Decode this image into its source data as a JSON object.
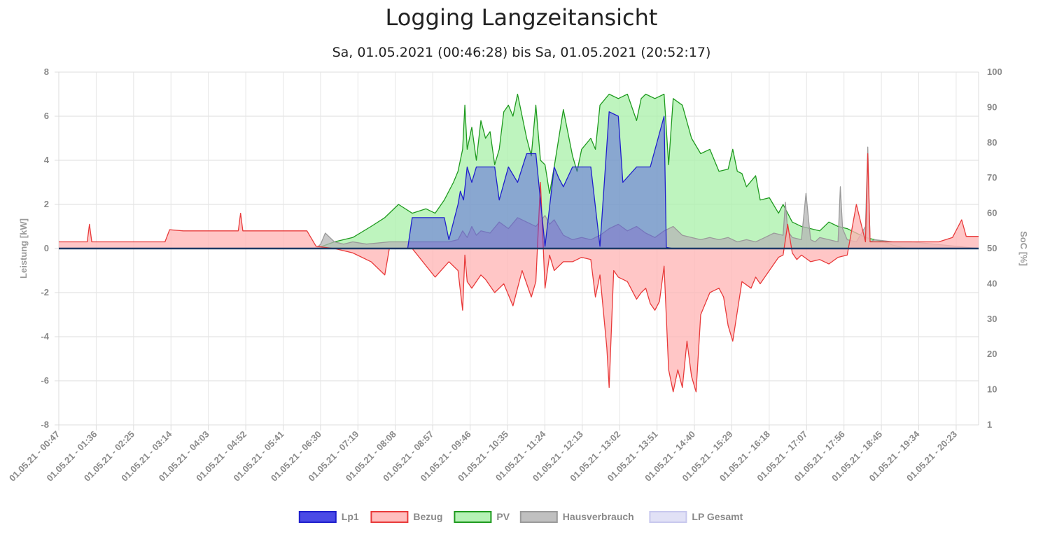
{
  "page": {
    "title": "Logging Langzeitansicht",
    "subtitle": "Sa, 01.05.2021 (00:46:28) bis Sa, 01.05.2021 (20:52:17)"
  },
  "chart_data": {
    "type": "area",
    "title": "Logging Langzeitansicht",
    "subtitle": "Sa, 01.05.2021 (00:46:28) bis Sa, 01.05.2021 (20:52:17)",
    "ylabel": "Leistung [kW]",
    "y2label": "SoC [%]",
    "ylim": [
      -8,
      8
    ],
    "y_ticks": [
      8,
      6,
      4,
      2,
      0,
      -2,
      -4,
      -6,
      -8
    ],
    "y2_ticks": [
      100,
      90,
      80,
      70,
      60,
      50,
      40,
      30,
      20,
      10,
      1
    ],
    "x_hours_range": [
      0.78,
      20.87
    ],
    "categories": [
      "01.05.21 - 00:47",
      "01.05.21 - 01:36",
      "01.05.21 - 02:25",
      "01.05.21 - 03:14",
      "01.05.21 - 04:03",
      "01.05.21 - 04:52",
      "01.05.21 - 05:41",
      "01.05.21 - 06:30",
      "01.05.21 - 07:19",
      "01.05.21 - 08:08",
      "01.05.21 - 08:57",
      "01.05.21 - 09:46",
      "01.05.21 - 10:35",
      "01.05.21 - 11:24",
      "01.05.21 - 12:13",
      "01.05.21 - 13:02",
      "01.05.21 - 13:51",
      "01.05.21 - 14:40",
      "01.05.21 - 15:29",
      "01.05.21 - 16:18",
      "01.05.21 - 17:07",
      "01.05.21 - 17:56",
      "01.05.21 - 18:45",
      "01.05.21 - 19:34",
      "01.05.21 - 20:23"
    ],
    "grid": true,
    "legend_position": "bottom",
    "series": [
      {
        "name": "Lp1",
        "fill": "#4a4ae6",
        "stroke": "#1f1fcc",
        "x": [
          0.78,
          6.4,
          8.0,
          8.4,
          8.5,
          8.7,
          9.0,
          9.2,
          9.3,
          9.5,
          9.55,
          9.62,
          9.7,
          9.8,
          9.9,
          10.0,
          10.3,
          10.4,
          10.6,
          10.8,
          11.0,
          11.1,
          11.2,
          11.4,
          11.6,
          11.7,
          11.8,
          12.0,
          12.2,
          12.4,
          12.6,
          12.8,
          13.0,
          13.1,
          13.4,
          13.7,
          14.0,
          14.05,
          14.2,
          20.87
        ],
        "y": [
          0,
          0,
          0,
          0,
          1.4,
          1.4,
          1.4,
          1.4,
          0.4,
          2.0,
          2.6,
          2.2,
          3.7,
          3.0,
          3.7,
          3.7,
          3.7,
          2.2,
          3.7,
          3.0,
          4.3,
          4.3,
          4.3,
          0.1,
          3.7,
          3.2,
          2.8,
          3.7,
          3.7,
          3.7,
          0.1,
          6.2,
          6.0,
          3.0,
          3.7,
          3.7,
          6.0,
          0.05,
          0,
          0
        ]
      },
      {
        "name": "Bezug",
        "fill": "#ffb3b3",
        "stroke": "#e83a3a",
        "x": [
          0.78,
          1.4,
          1.45,
          1.5,
          2.0,
          2.5,
          3.0,
          3.1,
          3.2,
          3.5,
          4.0,
          4.5,
          4.7,
          4.75,
          4.8,
          5.0,
          5.5,
          6.0,
          6.2,
          6.4,
          6.8,
          7.2,
          7.6,
          7.9,
          8.0,
          8.5,
          9.0,
          9.3,
          9.5,
          9.6,
          9.65,
          9.7,
          9.8,
          10.0,
          10.1,
          10.3,
          10.5,
          10.7,
          10.9,
          11.1,
          11.2,
          11.3,
          11.4,
          11.5,
          11.6,
          11.8,
          12.0,
          12.2,
          12.4,
          12.5,
          12.6,
          12.75,
          12.8,
          12.9,
          13.0,
          13.2,
          13.4,
          13.5,
          13.6,
          13.7,
          13.8,
          13.9,
          14.0,
          14.1,
          14.2,
          14.3,
          14.4,
          14.5,
          14.6,
          14.7,
          14.8,
          15.0,
          15.2,
          15.3,
          15.4,
          15.5,
          15.7,
          15.9,
          16.0,
          16.1,
          16.3,
          16.5,
          16.6,
          16.7,
          16.8,
          16.9,
          17.0,
          17.2,
          17.4,
          17.6,
          17.8,
          18.0,
          18.2,
          18.4,
          18.45,
          18.5,
          18.6,
          18.8,
          19.0,
          19.5,
          20.0,
          20.3,
          20.5,
          20.6,
          20.87
        ],
        "y": [
          0.3,
          0.3,
          1.1,
          0.3,
          0.3,
          0.3,
          0.3,
          0.3,
          0.85,
          0.8,
          0.8,
          0.8,
          0.8,
          1.6,
          0.8,
          0.8,
          0.8,
          0.8,
          0.8,
          0.1,
          0,
          -0.2,
          -0.6,
          -1.2,
          0,
          0,
          -1.3,
          -0.6,
          -1.0,
          -2.8,
          -0.3,
          -1.5,
          -1.8,
          -1.2,
          -1.4,
          -2.0,
          -1.6,
          -2.6,
          -1.0,
          -2.2,
          -1.5,
          3.0,
          -1.8,
          -0.3,
          -1.0,
          -0.6,
          -0.6,
          -0.4,
          -0.5,
          -2.2,
          -1.2,
          -4.5,
          -6.3,
          -1.0,
          -1.3,
          -1.5,
          -2.3,
          -2.0,
          -1.8,
          -2.5,
          -2.8,
          -2.4,
          -0.8,
          -5.5,
          -6.5,
          -5.5,
          -6.3,
          -4.2,
          -5.8,
          -6.5,
          -3.0,
          -2.0,
          -1.8,
          -2.2,
          -3.5,
          -4.2,
          -1.5,
          -1.8,
          -1.3,
          -1.6,
          -1.0,
          -0.4,
          -0.3,
          1.1,
          -0.2,
          -0.5,
          -0.3,
          -0.6,
          -0.5,
          -0.7,
          -0.4,
          -0.3,
          2.0,
          0.3,
          4.3,
          0.3,
          0.3,
          0.3,
          0.3,
          0.3,
          0.3,
          0.5,
          1.3,
          0.55,
          0.55
        ]
      },
      {
        "name": "PV",
        "fill": "#a8f0a8",
        "stroke": "#1f9a1f",
        "x": [
          0.78,
          6.4,
          6.8,
          7.2,
          7.6,
          7.9,
          8.0,
          8.2,
          8.5,
          8.8,
          9.0,
          9.2,
          9.4,
          9.5,
          9.6,
          9.65,
          9.7,
          9.8,
          9.9,
          10.0,
          10.1,
          10.2,
          10.3,
          10.4,
          10.5,
          10.6,
          10.7,
          10.8,
          11.0,
          11.1,
          11.2,
          11.3,
          11.4,
          11.5,
          11.6,
          11.8,
          12.0,
          12.1,
          12.2,
          12.4,
          12.5,
          12.6,
          12.8,
          13.0,
          13.2,
          13.4,
          13.5,
          13.6,
          13.8,
          14.0,
          14.1,
          14.2,
          14.4,
          14.6,
          14.8,
          15.0,
          15.2,
          15.4,
          15.5,
          15.6,
          15.7,
          15.8,
          16.0,
          16.1,
          16.3,
          16.5,
          16.6,
          16.8,
          17.0,
          17.2,
          17.4,
          17.6,
          17.8,
          18.0,
          18.2,
          18.4,
          18.6,
          18.8,
          19.0,
          19.2,
          19.4,
          20.87
        ],
        "y": [
          0,
          0,
          0.3,
          0.5,
          1.0,
          1.4,
          1.6,
          2.0,
          1.6,
          1.8,
          1.6,
          2.2,
          3.0,
          3.5,
          4.5,
          6.5,
          4.5,
          5.5,
          4.0,
          5.8,
          5.0,
          5.3,
          3.8,
          4.5,
          6.2,
          6.5,
          6.0,
          7.0,
          5.0,
          4.2,
          6.5,
          4.0,
          3.8,
          2.5,
          3.7,
          6.3,
          4.2,
          3.5,
          4.5,
          5.0,
          4.5,
          6.5,
          7.0,
          6.8,
          7.0,
          5.8,
          6.8,
          7.0,
          6.8,
          7.0,
          3.8,
          6.8,
          6.5,
          5.0,
          4.3,
          4.5,
          3.5,
          3.6,
          4.5,
          3.5,
          3.4,
          2.8,
          3.3,
          2.2,
          2.3,
          1.6,
          2.0,
          1.2,
          1.0,
          0.9,
          0.8,
          1.2,
          1.0,
          0.9,
          0.7,
          0.5,
          0.4,
          0.3,
          0.15,
          0.05,
          0,
          0
        ]
      },
      {
        "name": "Hausverbrauch",
        "fill": "#b5b5b5",
        "stroke": "#9a9a9a",
        "x": [
          0.78,
          6.4,
          6.5,
          6.6,
          6.8,
          7.0,
          7.2,
          7.5,
          8.0,
          8.5,
          9.0,
          9.3,
          9.5,
          9.6,
          9.7,
          9.8,
          9.9,
          10.0,
          10.2,
          10.4,
          10.6,
          10.8,
          11.0,
          11.2,
          11.4,
          11.5,
          11.6,
          11.8,
          12.0,
          12.2,
          12.4,
          12.6,
          12.8,
          13.0,
          13.2,
          13.4,
          13.6,
          13.8,
          14.0,
          14.2,
          14.4,
          14.6,
          14.8,
          15.0,
          15.2,
          15.4,
          15.6,
          15.8,
          16.0,
          16.2,
          16.4,
          16.6,
          16.65,
          16.7,
          16.8,
          17.0,
          17.1,
          17.2,
          17.3,
          17.4,
          17.6,
          17.8,
          17.85,
          17.9,
          18.0,
          18.2,
          18.4,
          18.45,
          18.5,
          18.6,
          19.0,
          19.4,
          20.87
        ],
        "y": [
          0,
          0,
          0.2,
          0.7,
          0.3,
          0.2,
          0.3,
          0.2,
          0.3,
          0.3,
          0.3,
          0.3,
          0.4,
          0.8,
          0.5,
          1.0,
          0.6,
          0.8,
          0.7,
          1.2,
          0.9,
          1.4,
          1.2,
          1.0,
          1.5,
          1.1,
          1.3,
          0.6,
          0.4,
          0.5,
          0.4,
          0.6,
          0.9,
          1.1,
          0.8,
          1.0,
          0.7,
          0.5,
          0.8,
          1.0,
          0.6,
          0.5,
          0.4,
          0.5,
          0.4,
          0.5,
          0.3,
          0.4,
          0.3,
          0.5,
          0.7,
          0.6,
          2.1,
          0.8,
          0.5,
          0.4,
          2.5,
          0.4,
          0.3,
          0.5,
          0.4,
          0.3,
          2.8,
          0.9,
          0.4,
          0.3,
          1.0,
          4.6,
          0.3,
          0.4,
          0.3,
          0.3,
          0
        ]
      },
      {
        "name": "LP Gesamt",
        "fill": "#dcdcf5",
        "stroke": "#c8c8ee",
        "x": [
          0.78,
          20.87
        ],
        "y": [
          0,
          0
        ]
      }
    ]
  }
}
